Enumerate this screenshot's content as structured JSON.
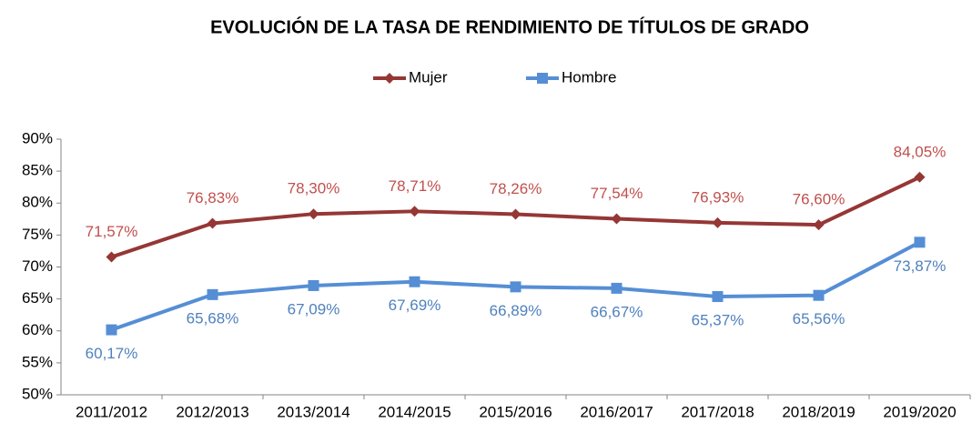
{
  "chart_data": {
    "type": "line",
    "title": "EVOLUCIÓN DE LA TASA DE RENDIMIENTO DE TÍTULOS DE GRADO",
    "categories": [
      "2011/2012",
      "2012/2013",
      "2013/2014",
      "2014/2015",
      "2015/2016",
      "2016/2017",
      "2017/2018",
      "2018/2019",
      "2019/2020"
    ],
    "series": [
      {
        "name": "Mujer",
        "color": "#953735",
        "label_color": "#c0504d",
        "marker": "diamond",
        "label_position": "above",
        "values": [
          71.57,
          76.83,
          78.3,
          78.71,
          78.26,
          77.54,
          76.93,
          76.6,
          84.05
        ],
        "value_labels": [
          "71,57%",
          "76,83%",
          "78,30%",
          "78,71%",
          "78,26%",
          "77,54%",
          "76,93%",
          "76,60%",
          "84,05%"
        ]
      },
      {
        "name": "Hombre",
        "color": "#558ed5",
        "label_color": "#4f81bd",
        "marker": "square",
        "label_position": "below",
        "values": [
          60.17,
          65.68,
          67.09,
          67.69,
          66.89,
          66.67,
          65.37,
          65.56,
          73.87
        ],
        "value_labels": [
          "60,17%",
          "65,68%",
          "67,09%",
          "67,69%",
          "66,89%",
          "66,67%",
          "65,37%",
          "65,56%",
          "73,87%"
        ]
      }
    ],
    "ylim": [
      50,
      90
    ],
    "yticks": [
      {
        "value": 50,
        "label": "50%"
      },
      {
        "value": 55,
        "label": "55%"
      },
      {
        "value": 60,
        "label": "60%"
      },
      {
        "value": 65,
        "label": "65%"
      },
      {
        "value": 70,
        "label": "70%"
      },
      {
        "value": 75,
        "label": "75%"
      },
      {
        "value": 80,
        "label": "80%"
      },
      {
        "value": 85,
        "label": "85%"
      },
      {
        "value": 90,
        "label": "90%"
      }
    ],
    "grid": false,
    "legend": "top"
  }
}
